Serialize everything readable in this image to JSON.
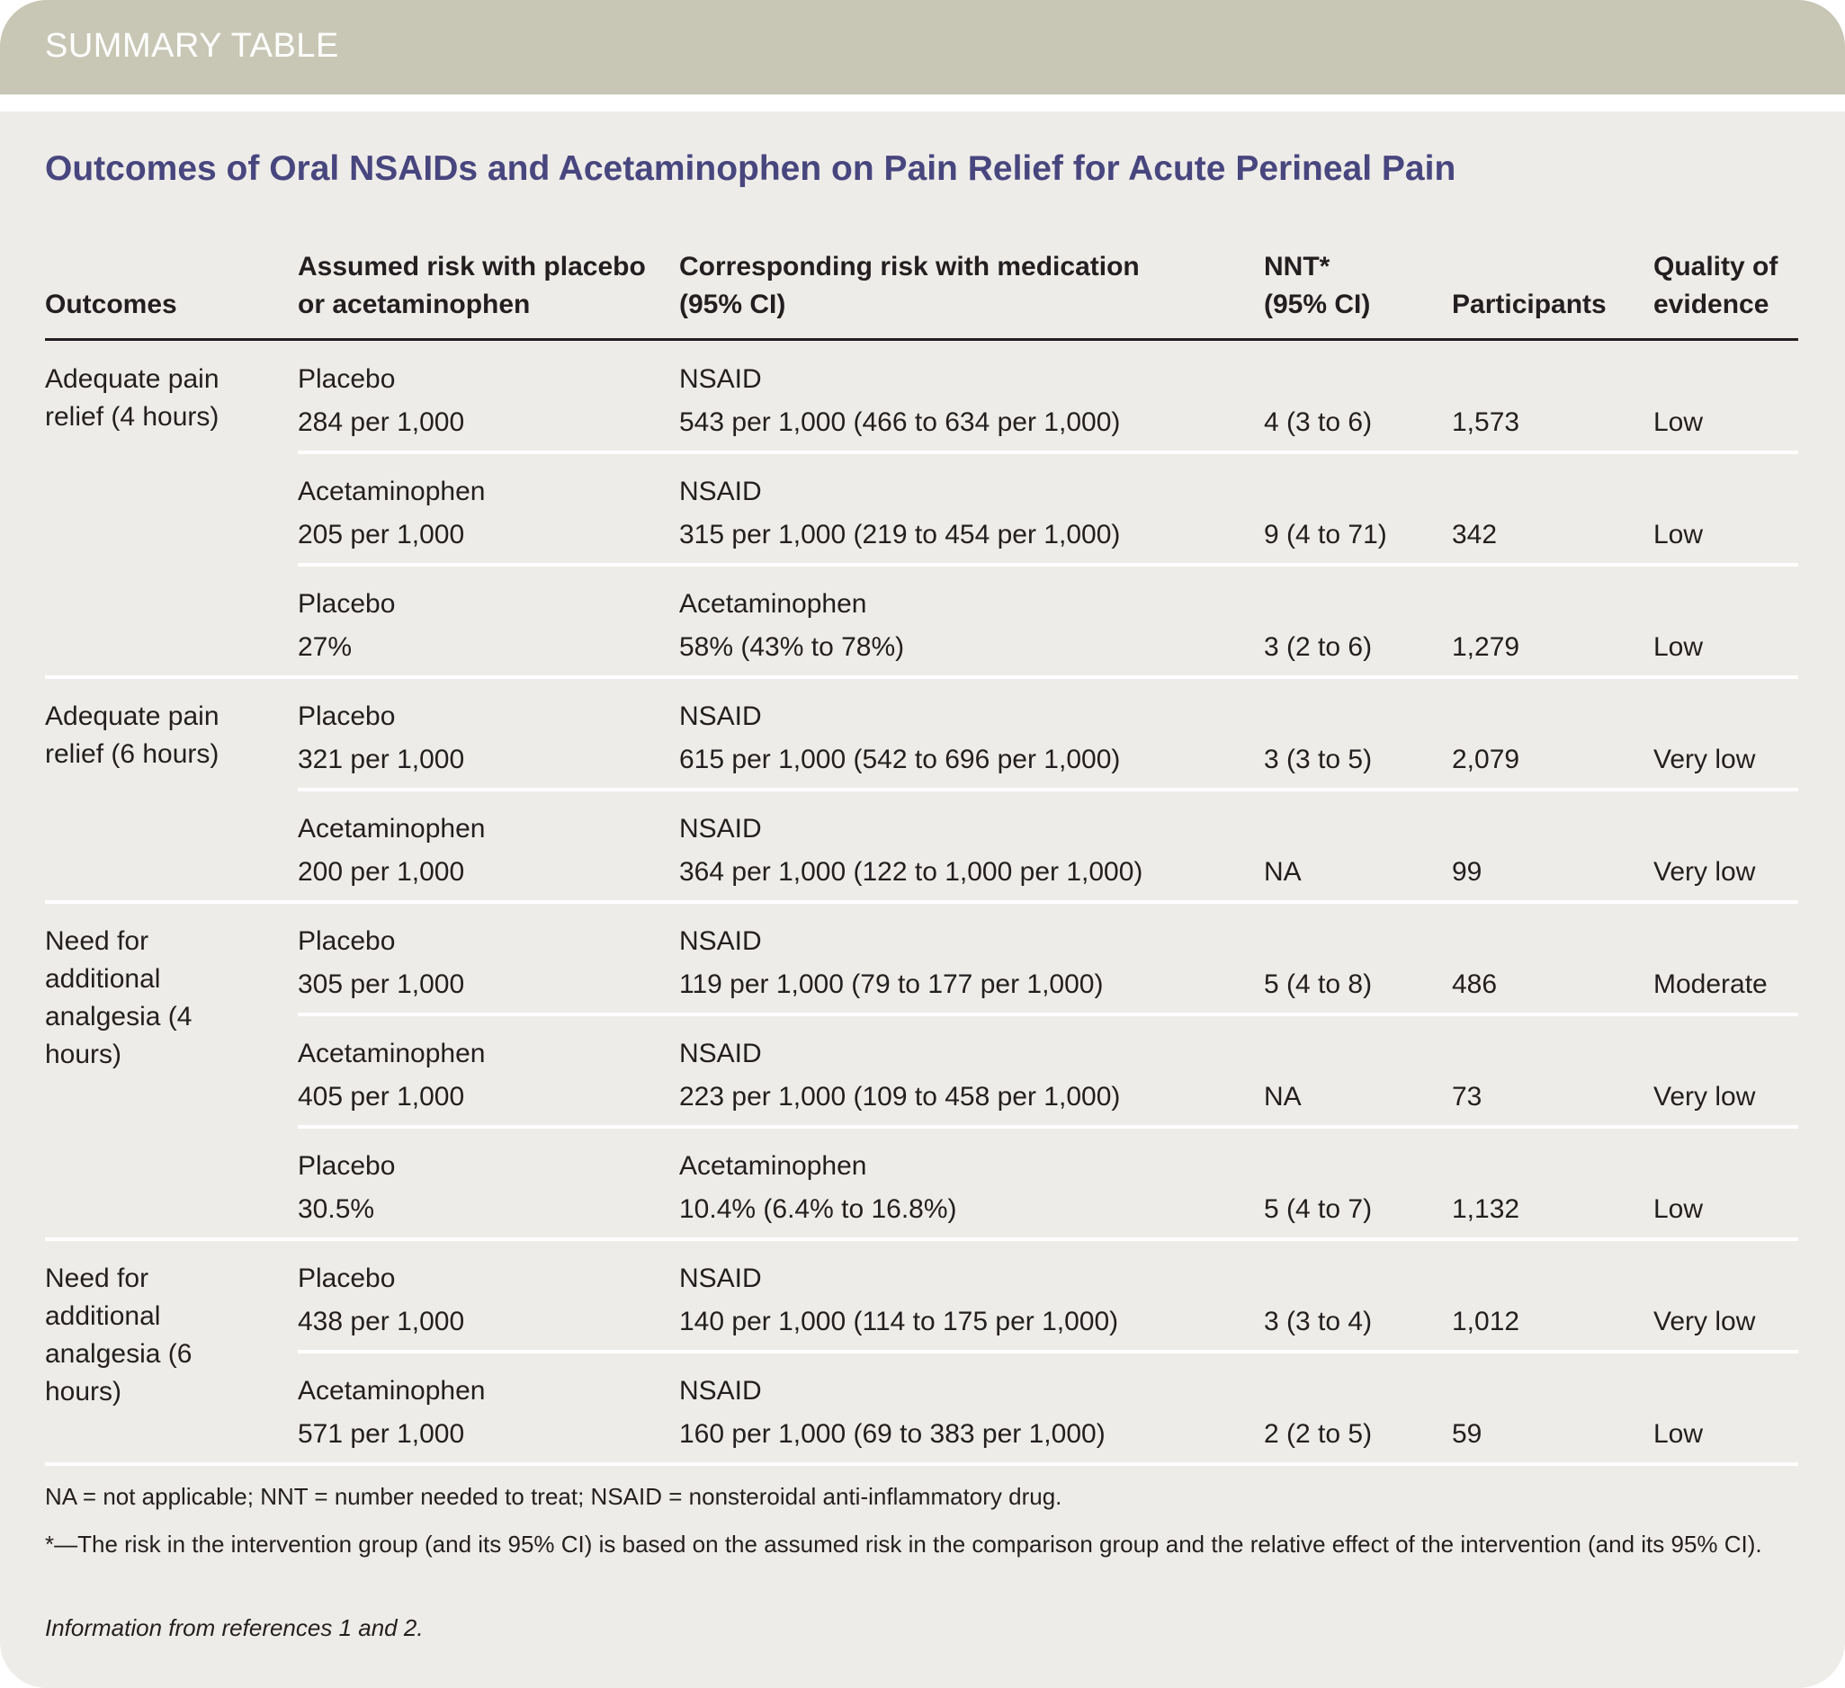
{
  "banner": {
    "label": "SUMMARY TABLE"
  },
  "title": "Outcomes of Oral NSAIDs and Acetaminophen on Pain Relief for Acute Perineal Pain",
  "columns": {
    "outcomes": "Outcomes",
    "assumed_risk_line1": "Assumed risk with placebo",
    "assumed_risk_line2": "or acetaminophen",
    "corresponding_risk_line1": "Corresponding risk with medication",
    "corresponding_risk_line2": "(95% CI)",
    "nnt_line1": "NNT*",
    "nnt_line2": "(95% CI)",
    "participants": "Participants",
    "quality_line1": "Quality of",
    "quality_line2": "evidence"
  },
  "groups": [
    {
      "outcome": "Adequate pain relief (4 hours)",
      "rows": [
        {
          "comparator": "Placebo",
          "assumed_risk": "284 per 1,000",
          "medication": "NSAID",
          "corresponding_risk": "543 per 1,000 (466 to 634 per 1,000)",
          "nnt": "4 (3 to 6)",
          "participants": "1,573",
          "quality": "Low"
        },
        {
          "comparator": "Acetaminophen",
          "assumed_risk": "205 per 1,000",
          "medication": "NSAID",
          "corresponding_risk": "315 per 1,000 (219 to 454 per 1,000)",
          "nnt": "9 (4 to 71)",
          "participants": "342",
          "quality": "Low"
        },
        {
          "comparator": "Placebo",
          "assumed_risk": "27%",
          "medication": "Acetaminophen",
          "corresponding_risk": "58% (43% to 78%)",
          "nnt": "3 (2 to 6)",
          "participants": "1,279",
          "quality": "Low"
        }
      ]
    },
    {
      "outcome": "Adequate pain relief (6 hours)",
      "rows": [
        {
          "comparator": "Placebo",
          "assumed_risk": "321 per 1,000",
          "medication": "NSAID",
          "corresponding_risk": "615 per 1,000 (542 to 696 per 1,000)",
          "nnt": "3 (3 to 5)",
          "participants": "2,079",
          "quality": "Very low"
        },
        {
          "comparator": "Acetaminophen",
          "assumed_risk": "200 per 1,000",
          "medication": "NSAID",
          "corresponding_risk": "364 per 1,000 (122 to 1,000 per 1,000)",
          "nnt": "NA",
          "participants": "99",
          "quality": "Very low"
        }
      ]
    },
    {
      "outcome": "Need for additional analgesia (4 hours)",
      "rows": [
        {
          "comparator": "Placebo",
          "assumed_risk": "305 per 1,000",
          "medication": "NSAID",
          "corresponding_risk": "119 per 1,000 (79 to 177 per 1,000)",
          "nnt": "5 (4 to 8)",
          "participants": "486",
          "quality": "Moderate"
        },
        {
          "comparator": "Acetaminophen",
          "assumed_risk": "405 per 1,000",
          "medication": "NSAID",
          "corresponding_risk": "223 per 1,000 (109 to 458 per 1,000)",
          "nnt": "NA",
          "participants": "73",
          "quality": "Very low"
        },
        {
          "comparator": "Placebo",
          "assumed_risk": "30.5%",
          "medication": "Acetaminophen",
          "corresponding_risk": "10.4% (6.4% to 16.8%)",
          "nnt": "5 (4 to 7)",
          "participants": "1,132",
          "quality": "Low"
        }
      ]
    },
    {
      "outcome": "Need for additional analgesia (6 hours)",
      "rows": [
        {
          "comparator": "Placebo",
          "assumed_risk": "438 per 1,000",
          "medication": "NSAID",
          "corresponding_risk": "140 per 1,000 (114 to 175 per 1,000)",
          "nnt": "3 (3 to 4)",
          "participants": "1,012",
          "quality": "Very low"
        },
        {
          "comparator": "Acetaminophen",
          "assumed_risk": "571 per 1,000",
          "medication": "NSAID",
          "corresponding_risk": "160 per 1,000 (69 to 383 per 1,000)",
          "nnt": "2 (2 to 5)",
          "participants": "59",
          "quality": "Low"
        }
      ]
    }
  ],
  "footnotes": {
    "abbreviations": "NA = not applicable; NNT = number needed to treat; NSAID = nonsteroidal anti-inflammatory drug.",
    "asterisk": "*—The risk in the intervention group (and its 95% CI) is based on the assumed risk in the comparison group and the relative effect of the intervention (and its 95% CI).",
    "source": "Information from references 1 and 2."
  },
  "colors": {
    "banner": "#c8c7b5",
    "title": "#48467e",
    "background": "#eeece8",
    "text": "#231f20"
  }
}
